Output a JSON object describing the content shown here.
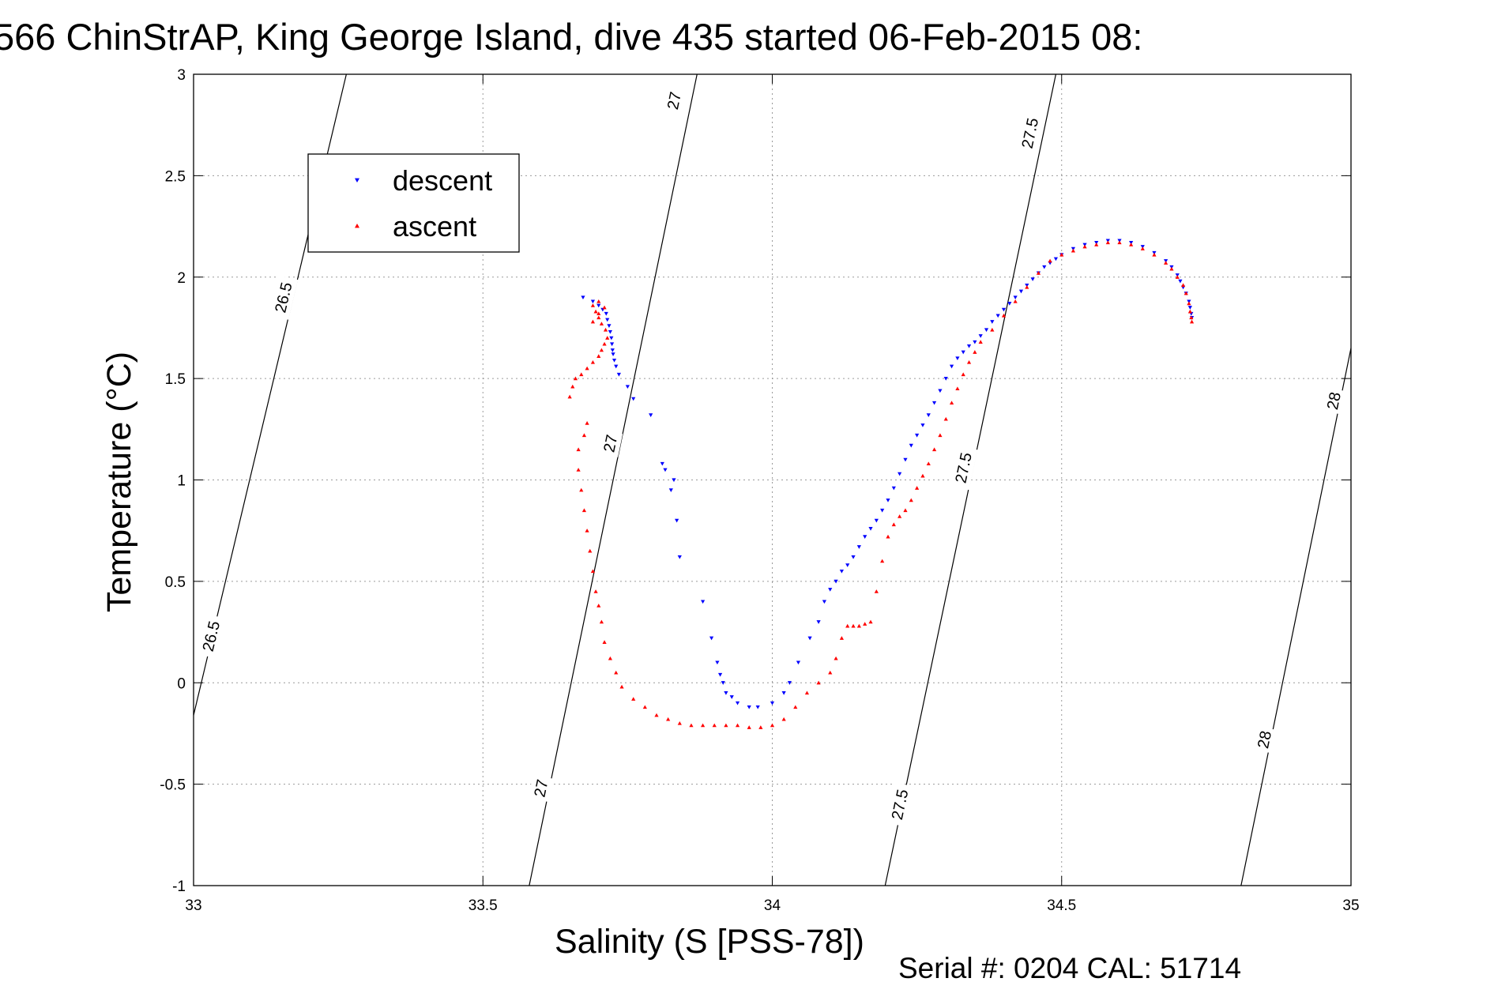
{
  "chart_data": {
    "type": "scatter",
    "title": "566 ChinStrAP, King George Island, dive 435 started 06-Feb-2015 08:",
    "xlabel": "Salinity (S [PSS-78])",
    "ylabel": "Temperature (°C)",
    "xlim": [
      33,
      35
    ],
    "ylim": [
      -1,
      3
    ],
    "xticks": [
      "33",
      "33.5",
      "34",
      "34.5",
      "35"
    ],
    "yticks": [
      "-1",
      "-0.5",
      "0",
      "0.5",
      "1",
      "1.5",
      "2",
      "2.5",
      "3"
    ],
    "grid": true,
    "legend_position": "top-left",
    "footer": "Serial #: 0204  CAL: 51714",
    "isopycnals": [
      {
        "label": "26.5",
        "points": [
          [
            33.0,
            -0.16
          ],
          [
            33.264,
            3.0
          ]
        ],
        "label_positions": [
          [
            33.03,
            0.23
          ],
          [
            33.155,
            1.9
          ]
        ]
      },
      {
        "label": "27",
        "points": [
          [
            33.58,
            -1.0
          ],
          [
            33.87,
            3.0
          ]
        ],
        "label_positions": [
          [
            33.6,
            -0.52
          ],
          [
            33.72,
            1.18
          ],
          [
            33.83,
            2.87
          ]
        ]
      },
      {
        "label": "27.5",
        "points": [
          [
            34.195,
            -1.0
          ],
          [
            34.49,
            3.0
          ]
        ],
        "label_positions": [
          [
            34.22,
            -0.6
          ],
          [
            34.33,
            1.06
          ],
          [
            34.445,
            2.71
          ]
        ]
      },
      {
        "label": "28",
        "points": [
          [
            34.81,
            -1.0
          ],
          [
            35.0,
            1.65
          ]
        ],
        "label_positions": [
          [
            34.85,
            -0.28
          ],
          [
            34.97,
            1.39
          ]
        ]
      }
    ],
    "series": [
      {
        "name": "descent",
        "color": "#0000ff",
        "marker": "triangle-down",
        "x": [
          33.673,
          33.69,
          33.7,
          33.707,
          33.713,
          33.715,
          33.718,
          33.72,
          33.722,
          33.723,
          33.724,
          33.725,
          33.727,
          33.73,
          33.735,
          33.75,
          33.76,
          33.79,
          33.81,
          33.815,
          33.83,
          33.825,
          33.835,
          33.84,
          33.88,
          33.895,
          33.905,
          33.91,
          33.915,
          33.92,
          33.93,
          33.94,
          33.96,
          33.975,
          34.0,
          34.02,
          34.03,
          34.045,
          34.065,
          34.08,
          34.09,
          34.1,
          34.11,
          34.12,
          34.13,
          34.14,
          34.15,
          34.16,
          34.17,
          34.18,
          34.19,
          34.2,
          34.21,
          34.22,
          34.23,
          34.24,
          34.25,
          34.26,
          34.27,
          34.28,
          34.29,
          34.3,
          34.31,
          34.32,
          34.33,
          34.34,
          34.35,
          34.36,
          34.37,
          34.38,
          34.39,
          34.4,
          34.41,
          34.42,
          34.43,
          34.44,
          34.45,
          34.46,
          34.47,
          34.48,
          34.49,
          34.5,
          34.52,
          34.54,
          34.56,
          34.58,
          34.6,
          34.62,
          34.64,
          34.66,
          34.68,
          34.69,
          34.7,
          34.705,
          34.71,
          34.715,
          34.72,
          34.722,
          34.724,
          34.725
        ],
        "y": [
          1.9,
          1.88,
          1.86,
          1.84,
          1.82,
          1.79,
          1.76,
          1.73,
          1.7,
          1.67,
          1.64,
          1.62,
          1.59,
          1.56,
          1.52,
          1.46,
          1.4,
          1.32,
          1.08,
          1.05,
          1.0,
          0.95,
          0.8,
          0.62,
          0.4,
          0.22,
          0.1,
          0.04,
          0.0,
          -0.05,
          -0.07,
          -0.1,
          -0.12,
          -0.12,
          -0.1,
          -0.05,
          0.0,
          0.1,
          0.22,
          0.3,
          0.4,
          0.46,
          0.5,
          0.55,
          0.58,
          0.62,
          0.67,
          0.72,
          0.76,
          0.8,
          0.85,
          0.9,
          0.96,
          1.03,
          1.1,
          1.17,
          1.22,
          1.27,
          1.32,
          1.38,
          1.44,
          1.5,
          1.56,
          1.6,
          1.63,
          1.66,
          1.68,
          1.71,
          1.74,
          1.78,
          1.81,
          1.84,
          1.87,
          1.9,
          1.93,
          1.96,
          1.99,
          2.02,
          2.05,
          2.07,
          2.09,
          2.11,
          2.14,
          2.16,
          2.17,
          2.18,
          2.18,
          2.17,
          2.15,
          2.12,
          2.08,
          2.05,
          2.01,
          1.98,
          1.95,
          1.92,
          1.88,
          1.85,
          1.82,
          1.8
        ]
      },
      {
        "name": "ascent",
        "color": "#ff0000",
        "marker": "triangle-up",
        "x": [
          33.65,
          33.655,
          33.66,
          33.67,
          33.68,
          33.69,
          33.7,
          33.705,
          33.71,
          33.715,
          33.712,
          33.705,
          33.7,
          33.695,
          33.69,
          33.7,
          33.71,
          33.7,
          33.69,
          33.68,
          33.675,
          33.665,
          33.665,
          33.67,
          33.675,
          33.68,
          33.685,
          33.69,
          33.695,
          33.7,
          33.705,
          33.71,
          33.72,
          33.73,
          33.74,
          33.76,
          33.78,
          33.8,
          33.82,
          33.84,
          33.86,
          33.88,
          33.9,
          33.92,
          33.94,
          33.96,
          33.98,
          34.0,
          34.02,
          34.04,
          34.06,
          34.08,
          34.1,
          34.11,
          34.12,
          34.13,
          34.14,
          34.15,
          34.16,
          34.17,
          34.18,
          34.19,
          34.2,
          34.21,
          34.22,
          34.23,
          34.24,
          34.25,
          34.26,
          34.27,
          34.28,
          34.29,
          34.3,
          34.31,
          34.32,
          34.33,
          34.34,
          34.35,
          34.36,
          34.38,
          34.4,
          34.42,
          34.44,
          34.46,
          34.48,
          34.5,
          34.52,
          34.54,
          34.56,
          34.58,
          34.6,
          34.62,
          34.64,
          34.66,
          34.68,
          34.69,
          34.7,
          34.71,
          34.715,
          34.72,
          34.722,
          34.724,
          34.725
        ],
        "y": [
          1.41,
          1.46,
          1.5,
          1.52,
          1.55,
          1.58,
          1.61,
          1.64,
          1.67,
          1.7,
          1.74,
          1.77,
          1.8,
          1.83,
          1.86,
          1.88,
          1.85,
          1.82,
          1.78,
          1.28,
          1.22,
          1.15,
          1.05,
          0.95,
          0.85,
          0.75,
          0.65,
          0.55,
          0.45,
          0.38,
          0.3,
          0.2,
          0.12,
          0.05,
          -0.02,
          -0.08,
          -0.12,
          -0.16,
          -0.18,
          -0.2,
          -0.21,
          -0.21,
          -0.21,
          -0.21,
          -0.21,
          -0.22,
          -0.22,
          -0.21,
          -0.18,
          -0.12,
          -0.05,
          0.0,
          0.05,
          0.12,
          0.22,
          0.28,
          0.28,
          0.28,
          0.29,
          0.3,
          0.45,
          0.6,
          0.72,
          0.78,
          0.82,
          0.85,
          0.9,
          0.96,
          1.02,
          1.08,
          1.15,
          1.22,
          1.3,
          1.38,
          1.45,
          1.52,
          1.58,
          1.63,
          1.68,
          1.74,
          1.81,
          1.88,
          1.95,
          2.02,
          2.08,
          2.11,
          2.13,
          2.15,
          2.16,
          2.17,
          2.17,
          2.16,
          2.14,
          2.11,
          2.07,
          2.04,
          2.0,
          1.96,
          1.92,
          1.87,
          1.83,
          1.8,
          1.78
        ]
      }
    ]
  }
}
